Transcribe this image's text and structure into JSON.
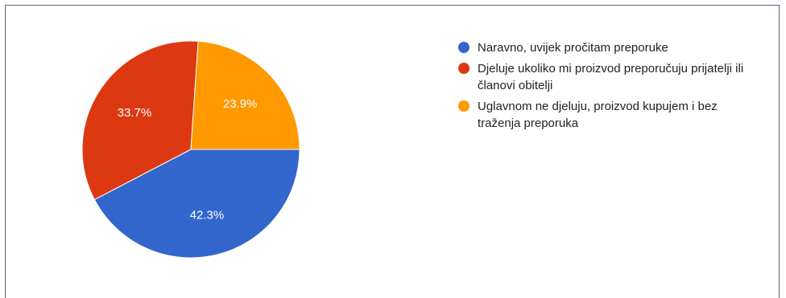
{
  "chart_data": {
    "type": "pie",
    "title": "",
    "slices": [
      {
        "label": "Naravno, uvijek pročitam preporuke",
        "value": 42.3,
        "value_label": "42.3%",
        "color": "#3366cc"
      },
      {
        "label": "Djeluje ukoliko mi proizvod preporučuju prijatelji ili članovi obitelji",
        "value": 33.7,
        "value_label": "33.7%",
        "color": "#dc3912"
      },
      {
        "label": "Uglavnom ne djeluju, proizvod kupujem i bez traženja preporuka",
        "value": 23.9,
        "value_label": "23.9%",
        "color": "#ff9900"
      }
    ],
    "legend_position": "right",
    "start_direction": "right-clockwise"
  }
}
